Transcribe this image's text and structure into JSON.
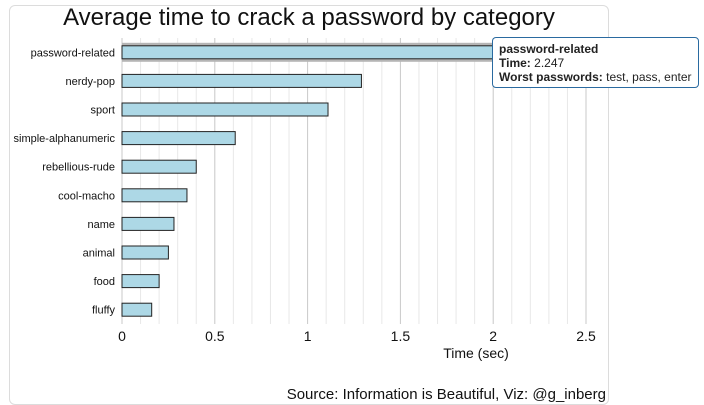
{
  "chart_data": {
    "type": "bar",
    "orientation": "horizontal",
    "title": "Average time to crack a password by category",
    "xlabel": "Time (sec)",
    "ylabel": "",
    "xlim": [
      0,
      2.5
    ],
    "x_ticks": [
      "0",
      "0.5",
      "1",
      "1.5",
      "2",
      "2.5"
    ],
    "grid": true,
    "categories": [
      "password-related",
      "nerdy-pop",
      "sport",
      "simple-alphanumeric",
      "rebellious-rude",
      "cool-macho",
      "name",
      "animal",
      "food",
      "fluffy"
    ],
    "values": [
      2.247,
      1.29,
      1.11,
      0.61,
      0.4,
      0.35,
      0.28,
      0.25,
      0.2,
      0.16
    ],
    "bar_color": "#add8e6",
    "bar_stroke": "#222222",
    "highlight_color": "#b5b5b5"
  },
  "tooltip": {
    "category": "password-related",
    "time_label": "Time:",
    "time_value": "2.247",
    "worst_label": "Worst passwords:",
    "worst_value": "test, pass, enter"
  },
  "source_note": "Source: Information is Beautiful, Viz: @g_inberg"
}
